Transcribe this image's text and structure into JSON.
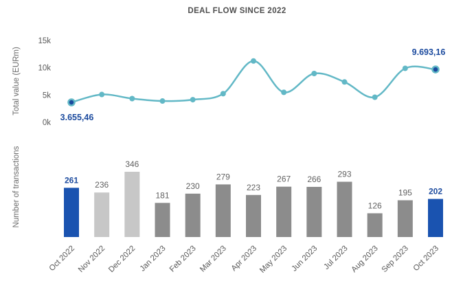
{
  "colors": {
    "line": "#62b8c6",
    "point": "#62b8c6",
    "endpoint_fill": "#1b4a9e",
    "endpoint_ring": "#62b8c6",
    "highlight_text": "#1b4a9e",
    "bar_highlight": "#1a53b0",
    "bar_2022": "#c7c7c7",
    "bar_2023": "#8c8c8c",
    "bar_value_text": "#616161",
    "axis_text": "#595959"
  },
  "chart_data": [
    {
      "type": "line",
      "title": "DEAL FLOW SINCE 2022",
      "ylabel": "Total value (EURm)",
      "xlabel": "",
      "categories": [
        "Oct 2022",
        "Nov 2022",
        "Dec 2022",
        "Jan 2023",
        "Feb 2023",
        "Mar 2023",
        "Apr 2023",
        "May 2023",
        "Jun 2023",
        "Jul 2023",
        "Aug 2023",
        "Sep 2023",
        "Oct 2023"
      ],
      "values": [
        3655.46,
        5100,
        4350,
        3900,
        4150,
        5250,
        11250,
        5500,
        8950,
        7400,
        4600,
        9900,
        9693.16
      ],
      "first_label": "3.655,46",
      "last_label": "9.693,16",
      "ylim": [
        0,
        15000
      ],
      "yticks": [
        {
          "v": 0,
          "label": "0k"
        },
        {
          "v": 5000,
          "label": "5k"
        },
        {
          "v": 10000,
          "label": "10k"
        },
        {
          "v": 15000,
          "label": "15k"
        }
      ],
      "grid": false,
      "legend": false
    },
    {
      "type": "bar",
      "title": "",
      "ylabel": "Number of transactions",
      "xlabel": "",
      "categories": [
        "Oct 2022",
        "Nov 2022",
        "Dec 2022",
        "Jan 2023",
        "Feb 2023",
        "Mar 2023",
        "Apr 2023",
        "May 2023",
        "Jun 2023",
        "Jul 2023",
        "Aug 2023",
        "Sep 2023",
        "Oct 2023"
      ],
      "values": [
        261,
        236,
        346,
        181,
        230,
        279,
        223,
        267,
        266,
        293,
        126,
        195,
        202
      ],
      "bar_roles": [
        "highlight",
        "y2022",
        "y2022",
        "y2023",
        "y2023",
        "y2023",
        "y2023",
        "y2023",
        "y2023",
        "y2023",
        "y2023",
        "y2023",
        "highlight"
      ],
      "grid": false,
      "legend": false
    }
  ]
}
